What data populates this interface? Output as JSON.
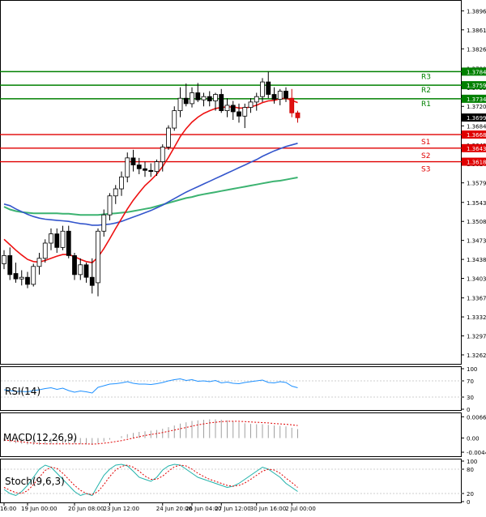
{
  "chart_data": {
    "type": "candlestick",
    "symbol_note": "USDCAD H4",
    "price_axis": {
      "ylim": [
        1.3247,
        1.3913
      ],
      "tick_labels": [
        "1.38960",
        "1.38610",
        "1.38260",
        "1.37900",
        "1.37550",
        "1.37200",
        "1.36840",
        "1.36490",
        "1.36140",
        "1.35790",
        "1.35430",
        "1.35080",
        "1.34730",
        "1.34380",
        "1.34030",
        "1.33670",
        "1.33320",
        "1.32970",
        "1.32620"
      ],
      "tick_values": [
        1.3896,
        1.3861,
        1.3826,
        1.379,
        1.3755,
        1.372,
        1.3684,
        1.3649,
        1.3614,
        1.3579,
        1.3543,
        1.3508,
        1.3473,
        1.3438,
        1.3403,
        1.3367,
        1.3332,
        1.3297,
        1.3262
      ]
    },
    "current_price": {
      "label": "1.36994",
      "value": 1.36994
    },
    "levels": [
      {
        "name": "R3",
        "value": 1.3784,
        "label": "1.37840",
        "color": "#008000"
      },
      {
        "name": "R2",
        "value": 1.3759,
        "label": "1.37590",
        "color": "#008000"
      },
      {
        "name": "R1",
        "value": 1.3734,
        "label": "1.37340",
        "color": "#008000"
      },
      {
        "name": "S1",
        "value": 1.3668,
        "label": "1.36680",
        "color": "#e00000"
      },
      {
        "name": "S2",
        "value": 1.3643,
        "label": "1.36430",
        "color": "#e00000"
      },
      {
        "name": "S3",
        "value": 1.3618,
        "label": "1.36180",
        "color": "#e00000"
      }
    ],
    "x_labels": [
      "16:00",
      "19 Jun 00:00",
      "20 Jun 08:00",
      "23 Jun 12:00",
      "24 Jun 20:00",
      "26 Jun 04:00",
      "27 Jun 12:00",
      "30 Jun 16:00",
      "2 Jul 00:00"
    ],
    "x_label_bars": [
      0,
      4,
      12,
      18,
      27,
      32,
      37,
      43,
      49
    ],
    "candles": [
      [
        1.343,
        1.3455,
        1.342,
        1.3445
      ],
      [
        1.3445,
        1.346,
        1.34,
        1.341
      ],
      [
        1.3412,
        1.3432,
        1.3395,
        1.3402
      ],
      [
        1.3402,
        1.3418,
        1.339,
        1.3405
      ],
      [
        1.3405,
        1.3415,
        1.3385,
        1.3392
      ],
      [
        1.3392,
        1.343,
        1.3388,
        1.3425
      ],
      [
        1.3425,
        1.345,
        1.341,
        1.344
      ],
      [
        1.344,
        1.3475,
        1.3432,
        1.3468
      ],
      [
        1.3468,
        1.3495,
        1.3455,
        1.3485
      ],
      [
        1.3485,
        1.3495,
        1.345,
        1.346
      ],
      [
        1.346,
        1.35,
        1.3455,
        1.349
      ],
      [
        1.349,
        1.35,
        1.344,
        1.3445
      ],
      [
        1.3445,
        1.345,
        1.34,
        1.341
      ],
      [
        1.341,
        1.344,
        1.34,
        1.3428
      ],
      [
        1.3428,
        1.3432,
        1.3395,
        1.3405
      ],
      [
        1.3405,
        1.344,
        1.3375,
        1.339
      ],
      [
        1.3395,
        1.3495,
        1.337,
        1.349
      ],
      [
        1.349,
        1.353,
        1.348,
        1.352
      ],
      [
        1.352,
        1.356,
        1.351,
        1.3555
      ],
      [
        1.3555,
        1.3575,
        1.354,
        1.3568
      ],
      [
        1.3568,
        1.36,
        1.3555,
        1.359
      ],
      [
        1.359,
        1.3635,
        1.358,
        1.3625
      ],
      [
        1.3625,
        1.364,
        1.36,
        1.3612
      ],
      [
        1.3612,
        1.3625,
        1.3595,
        1.3605
      ],
      [
        1.3605,
        1.3618,
        1.359,
        1.3602
      ],
      [
        1.3602,
        1.3615,
        1.359,
        1.36
      ],
      [
        1.36,
        1.3622,
        1.3592,
        1.3618
      ],
      [
        1.3618,
        1.365,
        1.36,
        1.3645
      ],
      [
        1.3645,
        1.3685,
        1.364,
        1.368
      ],
      [
        1.368,
        1.372,
        1.3675,
        1.3712
      ],
      [
        1.3712,
        1.3755,
        1.37,
        1.3735
      ],
      [
        1.3735,
        1.3762,
        1.372,
        1.3725
      ],
      [
        1.3725,
        1.3755,
        1.3718,
        1.3745
      ],
      [
        1.3745,
        1.3763,
        1.3728,
        1.3732
      ],
      [
        1.3732,
        1.3745,
        1.372,
        1.3738
      ],
      [
        1.3738,
        1.3748,
        1.372,
        1.373
      ],
      [
        1.373,
        1.3745,
        1.3712,
        1.3742
      ],
      [
        1.3742,
        1.3752,
        1.3708,
        1.3712
      ],
      [
        1.3712,
        1.3735,
        1.37,
        1.3722
      ],
      [
        1.3722,
        1.373,
        1.3695,
        1.371
      ],
      [
        1.371,
        1.3725,
        1.369,
        1.3702
      ],
      [
        1.3702,
        1.3725,
        1.368,
        1.3718
      ],
      [
        1.3718,
        1.3735,
        1.3708,
        1.3728
      ],
      [
        1.3728,
        1.3745,
        1.3712,
        1.3738
      ],
      [
        1.3738,
        1.3772,
        1.3728,
        1.3765
      ],
      [
        1.3765,
        1.3784,
        1.3735,
        1.3742
      ],
      [
        1.3742,
        1.3755,
        1.3725,
        1.3733
      ],
      [
        1.3733,
        1.3752,
        1.3722,
        1.3748
      ],
      [
        1.3748,
        1.3755,
        1.3728,
        1.3735
      ],
      [
        1.3735,
        1.3752,
        1.37,
        1.3708
      ],
      [
        1.3708,
        1.3712,
        1.369,
        1.3699
      ]
    ],
    "ma_fast_red": [
      1.3475,
      1.3465,
      1.3455,
      1.3446,
      1.3438,
      1.3434,
      1.3433,
      1.3436,
      1.344,
      1.3444,
      1.3447,
      1.3447,
      1.3443,
      1.3438,
      1.3434,
      1.3432,
      1.3442,
      1.3458,
      1.3476,
      1.3495,
      1.3513,
      1.3531,
      1.3547,
      1.3561,
      1.3574,
      1.3584,
      1.3595,
      1.3609,
      1.3626,
      1.3645,
      1.3664,
      1.3679,
      1.3691,
      1.37,
      1.3707,
      1.3712,
      1.3716,
      1.3718,
      1.3719,
      1.3719,
      1.3717,
      1.3717,
      1.3719,
      1.3722,
      1.3727,
      1.373,
      1.3731,
      1.3734,
      1.3735,
      1.3731,
      1.3727
    ],
    "ma_mid_blue": [
      1.354,
      1.3537,
      1.3531,
      1.3526,
      1.3521,
      1.3517,
      1.3514,
      1.3512,
      1.3511,
      1.351,
      1.3509,
      1.3508,
      1.3506,
      1.3504,
      1.3503,
      1.3501,
      1.3501,
      1.3502,
      1.3503,
      1.3505,
      1.3508,
      1.3512,
      1.3516,
      1.352,
      1.3524,
      1.3528,
      1.3533,
      1.3538,
      1.3544,
      1.355,
      1.3556,
      1.3562,
      1.3567,
      1.3572,
      1.3577,
      1.3582,
      1.3587,
      1.3592,
      1.3597,
      1.3602,
      1.3607,
      1.3612,
      1.3617,
      1.3622,
      1.3628,
      1.3633,
      1.3638,
      1.3642,
      1.3646,
      1.3649,
      1.3652
    ],
    "ma_slow_green": [
      1.3535,
      1.353,
      1.3527,
      1.3525,
      1.3524,
      1.3523,
      1.3523,
      1.3523,
      1.3523,
      1.3523,
      1.3522,
      1.3522,
      1.3521,
      1.352,
      1.352,
      1.352,
      1.352,
      1.3521,
      1.3522,
      1.3523,
      1.3524,
      1.3525,
      1.3527,
      1.3529,
      1.3531,
      1.3533,
      1.3536,
      1.3539,
      1.3542,
      1.3545,
      1.3548,
      1.3551,
      1.3553,
      1.3556,
      1.3558,
      1.356,
      1.3562,
      1.3564,
      1.3566,
      1.3568,
      1.357,
      1.3572,
      1.3574,
      1.3576,
      1.3578,
      1.358,
      1.3582,
      1.3583,
      1.3585,
      1.3587,
      1.3589
    ],
    "rsi": {
      "label": "RSI(14)",
      "ylim": [
        0,
        100
      ],
      "ticks": [
        "100",
        "70",
        "30",
        "0"
      ],
      "tick_values": [
        100,
        70,
        30,
        0
      ],
      "values": [
        48,
        46,
        44,
        44,
        43,
        46,
        48,
        51,
        53,
        49,
        52,
        46,
        42,
        45,
        43,
        40,
        54,
        58,
        62,
        63,
        65,
        68,
        64,
        62,
        62,
        61,
        63,
        66,
        70,
        73,
        75,
        71,
        73,
        69,
        70,
        68,
        71,
        65,
        67,
        64,
        63,
        66,
        68,
        70,
        72,
        66,
        65,
        68,
        66,
        57,
        53
      ]
    },
    "macd": {
      "label": "MACD(12,26,9)",
      "ticks": [
        "0.006619",
        "0.00",
        "-0.00440"
      ],
      "tick_values": [
        0.006619,
        0,
        -0.0044
      ],
      "ylim": [
        -0.0054,
        0.0072
      ],
      "histogram": [
        -0.001,
        -0.0013,
        -0.0016,
        -0.0018,
        -0.002,
        -0.0021,
        -0.0021,
        -0.002,
        -0.0019,
        -0.0019,
        -0.0017,
        -0.0017,
        -0.0018,
        -0.0019,
        -0.002,
        -0.0021,
        -0.0016,
        -0.0011,
        -0.0005,
        0.0,
        0.0006,
        0.0012,
        0.0016,
        0.0019,
        0.0021,
        0.0023,
        0.0025,
        0.0029,
        0.0034,
        0.0039,
        0.0045,
        0.0049,
        0.0053,
        0.0055,
        0.0057,
        0.0058,
        0.0058,
        0.0057,
        0.0055,
        0.0052,
        0.0049,
        0.0046,
        0.0044,
        0.0043,
        0.0043,
        0.0041,
        0.0039,
        0.0038,
        0.0036,
        0.0032,
        0.0028
      ],
      "signal": [
        -0.0006,
        -0.0008,
        -0.001,
        -0.0012,
        -0.0014,
        -0.0016,
        -0.0017,
        -0.0018,
        -0.0018,
        -0.0018,
        -0.0018,
        -0.0018,
        -0.0018,
        -0.0018,
        -0.0018,
        -0.0019,
        -0.0018,
        -0.0016,
        -0.0014,
        -0.0011,
        -0.0008,
        -0.0004,
        0.0,
        0.0004,
        0.0008,
        0.0011,
        0.0014,
        0.0017,
        0.0021,
        0.0025,
        0.0029,
        0.0033,
        0.0037,
        0.0041,
        0.0044,
        0.0047,
        0.0049,
        0.0051,
        0.0052,
        0.0052,
        0.0052,
        0.0051,
        0.005,
        0.0049,
        0.0048,
        0.0047,
        0.0045,
        0.0044,
        0.0043,
        0.0041,
        0.0039
      ]
    },
    "stoch": {
      "label": "Stoch(9,6,3)",
      "ylim": [
        0,
        100
      ],
      "ticks": [
        "100",
        "80",
        "20",
        "0"
      ],
      "tick_values": [
        100,
        80,
        20,
        0
      ],
      "main": [
        30,
        20,
        15,
        25,
        40,
        60,
        80,
        90,
        85,
        70,
        55,
        40,
        25,
        15,
        20,
        15,
        40,
        65,
        80,
        90,
        92,
        88,
        75,
        60,
        55,
        50,
        60,
        78,
        88,
        92,
        90,
        80,
        70,
        60,
        55,
        50,
        45,
        40,
        35,
        38,
        45,
        55,
        65,
        75,
        85,
        80,
        70,
        60,
        45,
        35,
        25
      ],
      "signal": [
        35,
        28,
        22,
        20,
        27,
        42,
        60,
        77,
        85,
        82,
        70,
        55,
        40,
        28,
        20,
        17,
        25,
        42,
        62,
        78,
        87,
        90,
        85,
        75,
        63,
        55,
        55,
        63,
        75,
        86,
        90,
        88,
        80,
        70,
        62,
        55,
        50,
        45,
        40,
        38,
        40,
        46,
        55,
        65,
        75,
        80,
        78,
        70,
        58,
        47,
        35
      ]
    }
  }
}
